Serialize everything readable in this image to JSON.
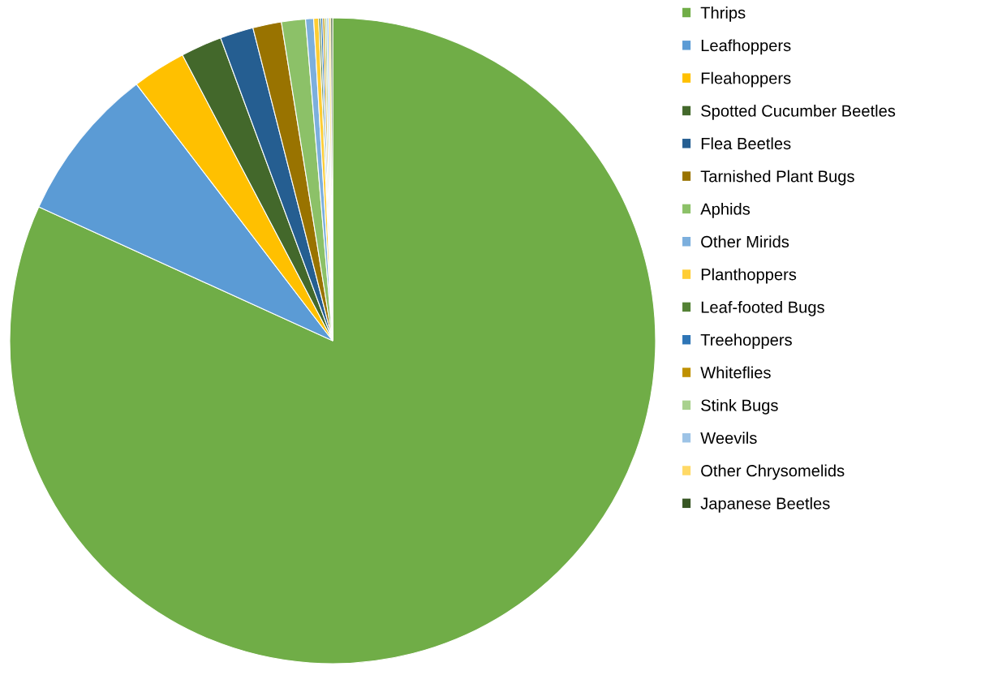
{
  "chart_data": {
    "type": "pie",
    "categories": [
      "Thrips",
      "Leafhoppers",
      "Fleahoppers",
      "Spotted Cucumber Beetles",
      "Flea Beetles",
      "Tarnished Plant Bugs",
      "Aphids",
      "Other Mirids",
      "Planthoppers",
      "Leaf-footed Bugs",
      "Treehoppers",
      "Whiteflies",
      "Stink Bugs",
      "Weevils",
      "Other Chrysomelids",
      "Japanese Beetles"
    ],
    "values": [
      81.8,
      7.81,
      2.69,
      2.06,
      1.67,
      1.43,
      1.2,
      0.4,
      0.25,
      0.1,
      0.1,
      0.1,
      0.1,
      0.1,
      0.1,
      0.09
    ],
    "colors": [
      "#70ad47",
      "#5b9bd5",
      "#ffc000",
      "#43682b",
      "#255e91",
      "#997300",
      "#8cc168",
      "#7cafdd",
      "#ffcd33",
      "#548235",
      "#2e75b6",
      "#bf9000",
      "#a9d18e",
      "#9dc3e6",
      "#ffd966",
      "#375623"
    ],
    "legend": "right"
  }
}
